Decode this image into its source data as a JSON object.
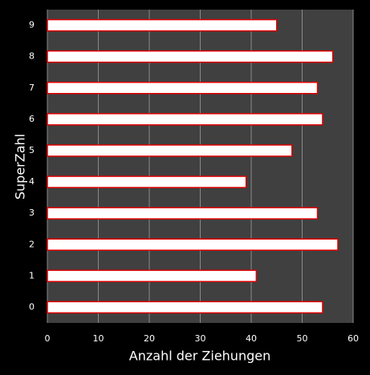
{
  "chart_data": {
    "type": "bar",
    "xlabel": "Anzahl der Ziehungen",
    "ylabel": "SuperZahl",
    "categories": [
      "0",
      "1",
      "2",
      "3",
      "4",
      "5",
      "6",
      "7",
      "8",
      "9"
    ],
    "values": [
      54,
      41,
      57,
      53,
      39,
      48,
      54,
      53,
      56,
      45
    ],
    "color": "#ffffff",
    "edgecolor": "#e00000",
    "xlim": [
      0,
      60
    ],
    "xticks": [
      0,
      10,
      20,
      30,
      40,
      50,
      60
    ],
    "grid": true
  }
}
